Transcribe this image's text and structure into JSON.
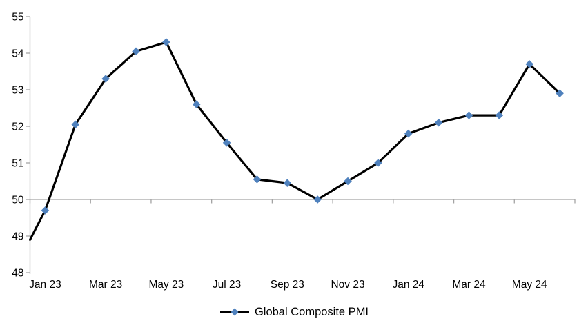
{
  "chart_data": {
    "type": "line",
    "title": "",
    "categories": [
      "Jan 23",
      "Feb 23",
      "Mar 23",
      "Apr 23",
      "May 23",
      "Jun 23",
      "Jul 23",
      "Aug 23",
      "Sep 23",
      "Oct 23",
      "Nov 23",
      "Dec 23",
      "Jan 24",
      "Feb 24",
      "Mar 24",
      "Apr 24",
      "May 24",
      "Jun 24"
    ],
    "series": [
      {
        "name": "Global Composite PMI",
        "values": [
          49.7,
          52.05,
          53.3,
          54.05,
          54.3,
          52.6,
          51.55,
          50.55,
          50.45,
          50.0,
          50.5,
          51.0,
          51.8,
          52.1,
          52.3,
          52.3,
          53.7,
          52.9
        ],
        "left_edge_value": 48.9
      }
    ],
    "x_tick_labels": [
      "Jan 23",
      "Mar 23",
      "May 23",
      "Jul 23",
      "Sep 23",
      "Nov 23",
      "Jan 24",
      "Mar 24",
      "May 24"
    ],
    "x_label_interval": 2,
    "y_ticks": [
      48,
      49,
      50,
      51,
      52,
      53,
      54,
      55
    ],
    "ylim": [
      48,
      55
    ],
    "x_axis_crosses_at": 50,
    "grid": "off",
    "legend": {
      "label": "Global Composite PMI",
      "position": "bottom-center"
    },
    "colors": {
      "line": "#000000",
      "marker": "#4f81bd",
      "axis": "#a3a3a3",
      "text": "#000000",
      "background": "#ffffff"
    },
    "marker_shape": "diamond"
  }
}
